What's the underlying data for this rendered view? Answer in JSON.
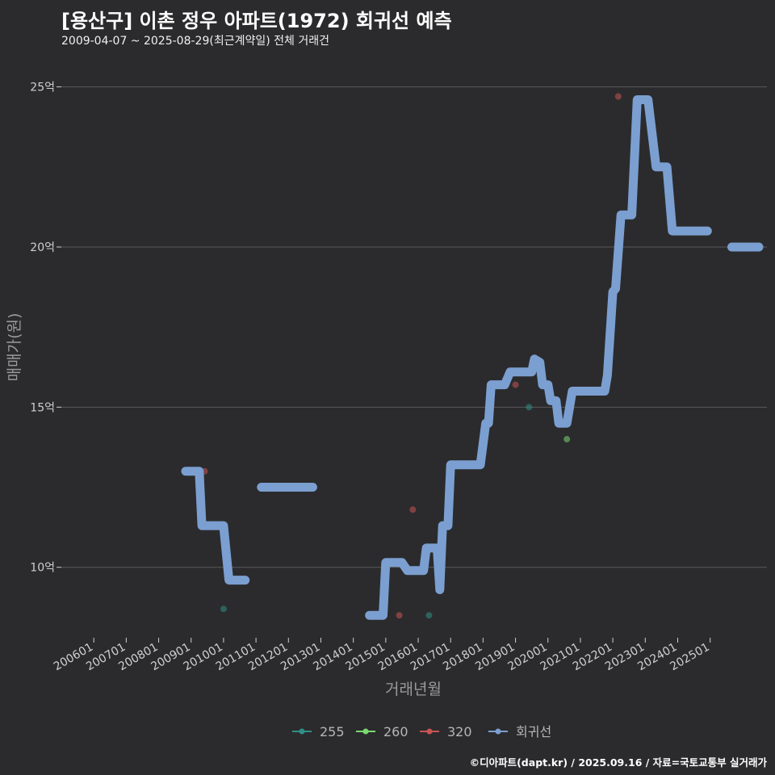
{
  "title": "[용산구] 이촌 정우 아파트(1972) 회귀선 예측",
  "subtitle": "2009-04-07 ~ 2025-08-29(최근계약일) 전체 거래건",
  "caption": "©디아파트(dapt.kr) / 2025.09.16 / 자료=국토교통부 실거래가",
  "chart_data": {
    "type": "line",
    "xlabel": "거래년월",
    "ylabel": "매매가(원)",
    "y_unit": "억",
    "ylim": [
      7.8,
      26.2
    ],
    "xlim": [
      "2005-01",
      "2026-10"
    ],
    "y_ticks": [
      10,
      15,
      20,
      25
    ],
    "y_tick_labels": [
      "10억",
      "15억",
      "20억",
      "25억"
    ],
    "x_ticks": [
      "2006-01",
      "2007-01",
      "2008-01",
      "2009-01",
      "2010-01",
      "2011-01",
      "2012-01",
      "2013-01",
      "2014-01",
      "2015-01",
      "2016-01",
      "2017-01",
      "2018-01",
      "2019-01",
      "2020-01",
      "2021-01",
      "2022-01",
      "2023-01",
      "2024-01",
      "2025-01"
    ],
    "x_tick_labels": [
      "200601",
      "200701",
      "200801",
      "200901",
      "201001",
      "201101",
      "201201",
      "201301",
      "201401",
      "201501",
      "201601",
      "201701",
      "201801",
      "201901",
      "202001",
      "202101",
      "202201",
      "202301",
      "202401",
      "202501"
    ],
    "grid": "horizontal",
    "legend_position": "bottom",
    "colors": {
      "background": "#2b2b2d",
      "grid": "#5a5a5c",
      "s255": "#2f8f85",
      "s260": "#7ad96f",
      "s320": "#c95454",
      "trend": "#7b9fd0"
    },
    "series": [
      {
        "name": "255",
        "kind": "point",
        "color": "#2f8f85",
        "points": [
          [
            "2010-01",
            8.7
          ],
          [
            "2016-05",
            8.5
          ],
          [
            "2019-06",
            15.0
          ]
        ]
      },
      {
        "name": "260",
        "kind": "point",
        "color": "#7ad96f",
        "points": [
          [
            "2020-08",
            14.0
          ]
        ]
      },
      {
        "name": "320",
        "kind": "point",
        "color": "#c95454",
        "points": [
          [
            "2009-06",
            13.0
          ],
          [
            "2015-06",
            8.5
          ],
          [
            "2015-11",
            11.8
          ],
          [
            "2019-01",
            15.7
          ],
          [
            "2022-03",
            24.7
          ]
        ]
      },
      {
        "name": "회귀선",
        "kind": "line",
        "color": "#7b9fd0",
        "segments": [
          [
            [
              "2008-11",
              13.0
            ],
            [
              "2009-04",
              13.0
            ],
            [
              "2009-05",
              11.3
            ],
            [
              "2010-01",
              11.3
            ],
            [
              "2010-03",
              9.6
            ],
            [
              "2010-09",
              9.6
            ]
          ],
          [
            [
              "2011-03",
              12.5
            ],
            [
              "2012-10",
              12.5
            ]
          ],
          [
            [
              "2014-07",
              8.5
            ],
            [
              "2014-12",
              8.5
            ],
            [
              "2015-01",
              10.15
            ],
            [
              "2015-07",
              10.15
            ],
            [
              "2015-09",
              9.9
            ],
            [
              "2016-03",
              9.9
            ],
            [
              "2016-04",
              10.6
            ],
            [
              "2016-08",
              10.6
            ],
            [
              "2016-09",
              9.3
            ],
            [
              "2016-10",
              11.3
            ],
            [
              "2016-12",
              11.3
            ],
            [
              "2017-01",
              13.2
            ],
            [
              "2017-12",
              13.2
            ],
            [
              "2018-02",
              14.5
            ],
            [
              "2018-03",
              14.5
            ],
            [
              "2018-04",
              15.7
            ],
            [
              "2018-09",
              15.7
            ],
            [
              "2018-11",
              16.1
            ],
            [
              "2019-07",
              16.1
            ],
            [
              "2019-08",
              16.5
            ],
            [
              "2019-10",
              16.4
            ],
            [
              "2019-11",
              15.7
            ],
            [
              "2020-01",
              15.7
            ],
            [
              "2020-02",
              15.2
            ],
            [
              "2020-04",
              15.2
            ],
            [
              "2020-05",
              14.5
            ],
            [
              "2020-08",
              14.5
            ],
            [
              "2020-10",
              15.5
            ],
            [
              "2021-10",
              15.5
            ],
            [
              "2021-11",
              16.0
            ],
            [
              "2022-01",
              18.6
            ],
            [
              "2022-02",
              18.7
            ],
            [
              "2022-04",
              21.0
            ],
            [
              "2022-08",
              21.0
            ],
            [
              "2022-10",
              24.6
            ],
            [
              "2023-02",
              24.6
            ],
            [
              "2023-05",
              22.5
            ],
            [
              "2023-09",
              22.5
            ],
            [
              "2023-11",
              20.5
            ],
            [
              "2024-12",
              20.5
            ]
          ],
          [
            [
              "2025-09",
              20.0
            ],
            [
              "2026-07",
              20.0
            ]
          ]
        ]
      }
    ],
    "legend": [
      "255",
      "260",
      "320",
      "회귀선"
    ]
  }
}
